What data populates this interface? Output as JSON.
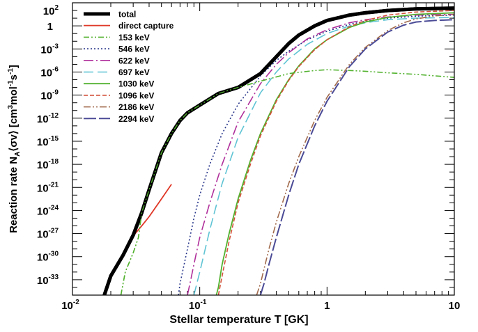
{
  "chart_data": {
    "type": "line",
    "xlabel": "Stellar temperature T [GK]",
    "ylabel": "Reaction rate N",
    "ylabel_sub": "A",
    "ylabel_rest": "⟨σv⟩ [cm",
    "ylabel_sup1": "3",
    "ylabel_mid": "mol",
    "ylabel_sup2": "-1",
    "ylabel_s": "s",
    "ylabel_sup3": "-1",
    "ylabel_end": "]",
    "x_scale": "log",
    "y_scale": "log",
    "xlim": [
      0.01,
      10
    ],
    "ylim": [
      1e-35,
      1000
    ],
    "x_ticks": [
      {
        "value": 0.01,
        "base": "10",
        "exp": "-2"
      },
      {
        "value": 0.1,
        "base": "10",
        "exp": "-1"
      },
      {
        "value": 1,
        "base": "1",
        "exp": ""
      },
      {
        "value": 10,
        "base": "10",
        "exp": ""
      }
    ],
    "y_ticks": [
      {
        "value": 100,
        "base": "10",
        "exp": "2"
      },
      {
        "value": 1,
        "base": "1",
        "exp": ""
      },
      {
        "value": 0.001,
        "base": "10",
        "exp": "-3"
      },
      {
        "value": 1e-06,
        "base": "10",
        "exp": "-6"
      },
      {
        "value": 1e-09,
        "base": "10",
        "exp": "-9"
      },
      {
        "value": 1e-12,
        "base": "10",
        "exp": "-12"
      },
      {
        "value": 1e-15,
        "base": "10",
        "exp": "-15"
      },
      {
        "value": 1e-18,
        "base": "10",
        "exp": "-18"
      },
      {
        "value": 1e-21,
        "base": "10",
        "exp": "-21"
      },
      {
        "value": 1e-24,
        "base": "10",
        "exp": "-24"
      },
      {
        "value": 1e-27,
        "base": "10",
        "exp": "-27"
      },
      {
        "value": 1e-30,
        "base": "10",
        "exp": "-30"
      },
      {
        "value": 1e-33,
        "base": "10",
        "exp": "-33"
      }
    ],
    "legend_position": "top-left",
    "series": [
      {
        "name": "total",
        "color": "#000000",
        "width": 5,
        "dash": "",
        "points": [
          [
            0.0178,
            -35
          ],
          [
            0.02,
            -32.5
          ],
          [
            0.025,
            -29.8
          ],
          [
            0.03,
            -27.2
          ],
          [
            0.035,
            -24.3
          ],
          [
            0.04,
            -21.3
          ],
          [
            0.05,
            -16.5
          ],
          [
            0.06,
            -14
          ],
          [
            0.07,
            -12.3
          ],
          [
            0.08,
            -11.3
          ],
          [
            0.1,
            -10.3
          ],
          [
            0.14,
            -8.8
          ],
          [
            0.2,
            -8
          ],
          [
            0.3,
            -6.2
          ],
          [
            0.4,
            -4
          ],
          [
            0.5,
            -2.3
          ],
          [
            0.6,
            -1.2
          ],
          [
            0.8,
            0
          ],
          [
            1,
            0.7
          ],
          [
            1.5,
            1.4
          ],
          [
            2,
            1.7
          ],
          [
            3,
            2
          ],
          [
            5,
            2.2
          ],
          [
            7,
            2.25
          ],
          [
            10,
            2.3
          ]
        ]
      },
      {
        "name": "direct capture",
        "color": "#e03a2a",
        "width": 1.8,
        "dash": "",
        "points": [
          [
            0.0178,
            -35
          ],
          [
            0.02,
            -32.5
          ],
          [
            0.025,
            -29.8
          ],
          [
            0.03,
            -27.3
          ],
          [
            0.035,
            -26
          ],
          [
            0.04,
            -24.8
          ],
          [
            0.05,
            -22.5
          ],
          [
            0.06,
            -20.6
          ]
        ]
      },
      {
        "name": "153 keV",
        "color": "#52b22f",
        "width": 1.6,
        "dash": "8 3 2 3 2 3",
        "points": [
          [
            0.024,
            -35
          ],
          [
            0.026,
            -32
          ],
          [
            0.03,
            -29.5
          ],
          [
            0.033,
            -27.5
          ],
          [
            0.035,
            -24.3
          ],
          [
            0.04,
            -21.3
          ],
          [
            0.05,
            -16.5
          ],
          [
            0.06,
            -14
          ],
          [
            0.07,
            -12.3
          ],
          [
            0.08,
            -11.3
          ],
          [
            0.1,
            -10.3
          ],
          [
            0.14,
            -8.8
          ],
          [
            0.2,
            -8
          ],
          [
            0.3,
            -7.2
          ],
          [
            0.5,
            -6.2
          ],
          [
            0.8,
            -5.8
          ],
          [
            1,
            -5.7
          ],
          [
            1.5,
            -5.8
          ],
          [
            2,
            -5.9
          ],
          [
            3,
            -6.1
          ],
          [
            5,
            -6.3
          ],
          [
            10,
            -6.7
          ]
        ]
      },
      {
        "name": "546 keV",
        "color": "#28368a",
        "width": 1.6,
        "dash": "2 3",
        "points": [
          [
            0.068,
            -35
          ],
          [
            0.07,
            -33.5
          ],
          [
            0.08,
            -29
          ],
          [
            0.09,
            -25
          ],
          [
            0.1,
            -22
          ],
          [
            0.12,
            -18
          ],
          [
            0.15,
            -14
          ],
          [
            0.2,
            -10.2
          ],
          [
            0.3,
            -6.5
          ],
          [
            0.4,
            -4.5
          ],
          [
            0.5,
            -3.3
          ],
          [
            0.7,
            -1.8
          ],
          [
            1,
            -0.7
          ],
          [
            1.5,
            0.2
          ],
          [
            2,
            0.6
          ],
          [
            3,
            1
          ],
          [
            5,
            1.25
          ],
          [
            7,
            1.35
          ],
          [
            10,
            1.4
          ]
        ]
      },
      {
        "name": "622 keV",
        "color": "#b02f9b",
        "width": 1.6,
        "dash": "14 4 2 4",
        "points": [
          [
            0.08,
            -35
          ],
          [
            0.085,
            -33
          ],
          [
            0.09,
            -31
          ],
          [
            0.1,
            -27.5
          ],
          [
            0.12,
            -23
          ],
          [
            0.15,
            -18
          ],
          [
            0.2,
            -12.5
          ],
          [
            0.3,
            -7.5
          ],
          [
            0.4,
            -5
          ],
          [
            0.5,
            -3.5
          ],
          [
            0.7,
            -1.7
          ],
          [
            1,
            -0.5
          ],
          [
            1.5,
            0.4
          ],
          [
            2,
            0.8
          ],
          [
            3,
            1.15
          ],
          [
            5,
            1.4
          ],
          [
            10,
            1.5
          ]
        ]
      },
      {
        "name": "697 keV",
        "color": "#5fc4d4",
        "width": 1.6,
        "dash": "14 6",
        "points": [
          [
            0.09,
            -35
          ],
          [
            0.1,
            -32
          ],
          [
            0.12,
            -26.5
          ],
          [
            0.15,
            -20.5
          ],
          [
            0.2,
            -14.5
          ],
          [
            0.3,
            -8.7
          ],
          [
            0.4,
            -6
          ],
          [
            0.5,
            -4.3
          ],
          [
            0.7,
            -2.4
          ],
          [
            1,
            -1
          ],
          [
            1.5,
            0
          ],
          [
            2,
            0.4
          ],
          [
            3,
            0.8
          ],
          [
            5,
            1
          ],
          [
            10,
            1.1
          ]
        ]
      },
      {
        "name": "1030 keV",
        "color": "#52b22f",
        "width": 1.8,
        "dash": "",
        "points": [
          [
            0.135,
            -35
          ],
          [
            0.14,
            -34
          ],
          [
            0.15,
            -31
          ],
          [
            0.17,
            -27
          ],
          [
            0.2,
            -22.5
          ],
          [
            0.25,
            -17.5
          ],
          [
            0.3,
            -14
          ],
          [
            0.4,
            -9.6
          ],
          [
            0.5,
            -7
          ],
          [
            0.6,
            -5.2
          ],
          [
            0.8,
            -3
          ],
          [
            1,
            -1.8
          ],
          [
            1.5,
            -0.2
          ],
          [
            2,
            0.5
          ],
          [
            3,
            1.1
          ],
          [
            5,
            1.5
          ],
          [
            10,
            1.7
          ]
        ]
      },
      {
        "name": "1096 keV",
        "color": "#d4523b",
        "width": 1.6,
        "dash": "6 3",
        "points": [
          [
            0.14,
            -35
          ],
          [
            0.15,
            -32.5
          ],
          [
            0.17,
            -28
          ],
          [
            0.2,
            -23
          ],
          [
            0.25,
            -18
          ],
          [
            0.3,
            -14.3
          ],
          [
            0.4,
            -9.8
          ],
          [
            0.5,
            -7.1
          ],
          [
            0.6,
            -5.3
          ],
          [
            0.8,
            -3.1
          ],
          [
            1,
            -1.8
          ],
          [
            1.5,
            -0.1
          ],
          [
            2,
            0.7
          ],
          [
            3,
            1.4
          ],
          [
            5,
            1.8
          ],
          [
            10,
            2
          ]
        ]
      },
      {
        "name": "2186 keV",
        "color": "#a16a4c",
        "width": 1.6,
        "dash": "10 3 2 3 2 3",
        "points": [
          [
            0.28,
            -35
          ],
          [
            0.3,
            -33.5
          ],
          [
            0.35,
            -29
          ],
          [
            0.4,
            -25.5
          ],
          [
            0.5,
            -20.5
          ],
          [
            0.6,
            -17
          ],
          [
            0.8,
            -12.3
          ],
          [
            1,
            -9.3
          ],
          [
            1.5,
            -5
          ],
          [
            2,
            -2.8
          ],
          [
            3,
            -0.6
          ],
          [
            4,
            0.4
          ],
          [
            5,
            0.9
          ],
          [
            7,
            1.3
          ],
          [
            10,
            1.5
          ]
        ]
      },
      {
        "name": "2294 keV",
        "color": "#4a4a96",
        "width": 2,
        "dash": "18 4",
        "points": [
          [
            0.3,
            -35
          ],
          [
            0.32,
            -33.5
          ],
          [
            0.35,
            -31
          ],
          [
            0.4,
            -27.5
          ],
          [
            0.5,
            -22
          ],
          [
            0.6,
            -18
          ],
          [
            0.8,
            -13
          ],
          [
            1,
            -9.8
          ],
          [
            1.5,
            -5.3
          ],
          [
            2,
            -3
          ],
          [
            3,
            -0.8
          ],
          [
            4,
            0.1
          ],
          [
            5,
            0.5
          ],
          [
            7,
            0.7
          ],
          [
            10,
            0.8
          ]
        ]
      }
    ]
  }
}
